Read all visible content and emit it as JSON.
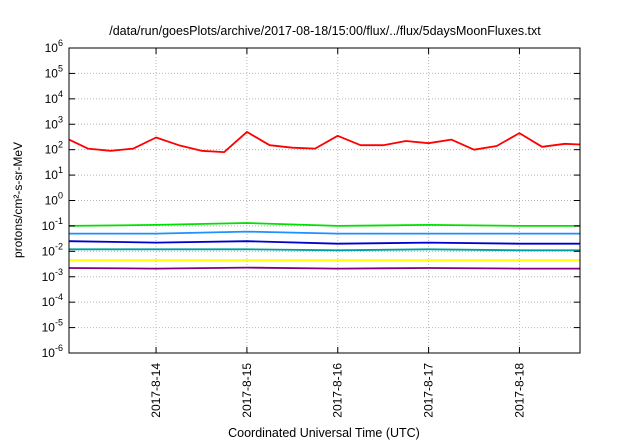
{
  "chart_data": {
    "type": "line",
    "title": "/data/run/goesPlots/archive/2017-08-18/15:00/flux/../flux/5daysMoonFluxes.txt",
    "xlabel": "Coordinated Universal Time (UTC)",
    "ylabel": "protons/cm²-s-sr-MeV",
    "y_scale": "log",
    "ylim": [
      1e-06,
      1000000.0
    ],
    "y_ticks": [
      {
        "value": 1e-06,
        "base": "10",
        "exp": "-6"
      },
      {
        "value": 1e-05,
        "base": "10",
        "exp": "-5"
      },
      {
        "value": 0.0001,
        "base": "10",
        "exp": "-4"
      },
      {
        "value": 0.001,
        "base": "10",
        "exp": "-3"
      },
      {
        "value": 0.01,
        "base": "10",
        "exp": "-2"
      },
      {
        "value": 0.1,
        "base": "10",
        "exp": "-1"
      },
      {
        "value": 1.0,
        "base": "10",
        "exp": "0"
      },
      {
        "value": 10.0,
        "base": "10",
        "exp": "1"
      },
      {
        "value": 100.0,
        "base": "10",
        "exp": "2"
      },
      {
        "value": 1000.0,
        "base": "10",
        "exp": "3"
      },
      {
        "value": 10000.0,
        "base": "10",
        "exp": "4"
      },
      {
        "value": 100000.0,
        "base": "10",
        "exp": "5"
      },
      {
        "value": 1000000.0,
        "base": "10",
        "exp": "6"
      }
    ],
    "xlim": [
      "2017-08-13T01:00",
      "2017-08-18T16:00"
    ],
    "x_ticks": [
      "2017-8-14",
      "2017-8-15",
      "2017-8-16",
      "2017-8-17",
      "2017-8-18"
    ],
    "x_tick_dates": [
      "2017-08-14",
      "2017-08-15",
      "2017-08-16",
      "2017-08-17",
      "2017-08-18"
    ],
    "grid": true,
    "series": [
      {
        "color": "#ff0000",
        "x": [
          "2017-08-13T01:00",
          "2017-08-13T06:00",
          "2017-08-13T12:00",
          "2017-08-13T18:00",
          "2017-08-14T00:00",
          "2017-08-14T06:00",
          "2017-08-14T12:00",
          "2017-08-14T18:00",
          "2017-08-15T00:00",
          "2017-08-15T06:00",
          "2017-08-15T12:00",
          "2017-08-15T18:00",
          "2017-08-16T00:00",
          "2017-08-16T06:00",
          "2017-08-16T12:00",
          "2017-08-16T18:00",
          "2017-08-17T00:00",
          "2017-08-17T06:00",
          "2017-08-17T12:00",
          "2017-08-17T18:00",
          "2017-08-18T00:00",
          "2017-08-18T06:00",
          "2017-08-18T12:00",
          "2017-08-18T16:00"
        ],
        "values": [
          250,
          110,
          90,
          110,
          300,
          150,
          90,
          80,
          500,
          150,
          120,
          110,
          350,
          150,
          150,
          220,
          180,
          250,
          100,
          140,
          450,
          130,
          170,
          160
        ]
      },
      {
        "color": "#00e000",
        "x": [
          "2017-08-13T01:00",
          "2017-08-14T00:00",
          "2017-08-15T00:00",
          "2017-08-16T00:00",
          "2017-08-17T00:00",
          "2017-08-18T00:00",
          "2017-08-18T16:00"
        ],
        "values": [
          0.1,
          0.11,
          0.13,
          0.1,
          0.11,
          0.1,
          0.1
        ]
      },
      {
        "color": "#1e90ff",
        "x": [
          "2017-08-13T01:00",
          "2017-08-14T00:00",
          "2017-08-15T00:00",
          "2017-08-16T00:00",
          "2017-08-17T00:00",
          "2017-08-18T00:00",
          "2017-08-18T16:00"
        ],
        "values": [
          0.05,
          0.05,
          0.06,
          0.05,
          0.05,
          0.05,
          0.05
        ]
      },
      {
        "color": "#0000cd",
        "x": [
          "2017-08-13T01:00",
          "2017-08-14T00:00",
          "2017-08-15T00:00",
          "2017-08-16T00:00",
          "2017-08-17T00:00",
          "2017-08-18T00:00",
          "2017-08-18T16:00"
        ],
        "values": [
          0.025,
          0.022,
          0.025,
          0.02,
          0.022,
          0.02,
          0.02
        ]
      },
      {
        "color": "#00a0a0",
        "x": [
          "2017-08-13T01:00",
          "2017-08-14T00:00",
          "2017-08-15T00:00",
          "2017-08-16T00:00",
          "2017-08-17T00:00",
          "2017-08-18T00:00",
          "2017-08-18T16:00"
        ],
        "values": [
          0.012,
          0.012,
          0.012,
          0.011,
          0.012,
          0.011,
          0.011
        ]
      },
      {
        "color": "#ffff00",
        "x": [
          "2017-08-13T01:00",
          "2017-08-18T16:00"
        ],
        "values": [
          0.0045,
          0.0045
        ]
      },
      {
        "color": "#800080",
        "x": [
          "2017-08-13T01:00",
          "2017-08-14T00:00",
          "2017-08-15T00:00",
          "2017-08-16T00:00",
          "2017-08-17T00:00",
          "2017-08-18T00:00",
          "2017-08-18T16:00"
        ],
        "values": [
          0.0022,
          0.0021,
          0.0023,
          0.0021,
          0.0022,
          0.0021,
          0.0021
        ]
      }
    ]
  }
}
